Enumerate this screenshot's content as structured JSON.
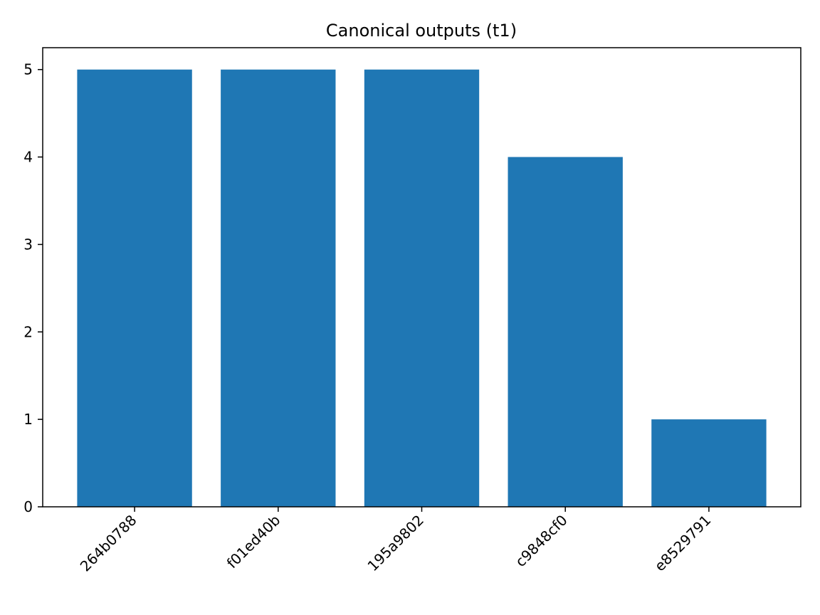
{
  "chart_data": {
    "type": "bar",
    "title": "Canonical outputs (t1)",
    "xlabel": "",
    "ylabel": "",
    "categories": [
      "264b0788",
      "f01ed40b",
      "195a9802",
      "c9848cf0",
      "e8529791"
    ],
    "values": [
      5,
      5,
      5,
      4,
      1
    ],
    "ylim": [
      0,
      5.25
    ],
    "yticks": [
      "0",
      "1",
      "2",
      "3",
      "4",
      "5"
    ],
    "grid": false,
    "legend": "none",
    "bar_color": "#1f77b4"
  }
}
